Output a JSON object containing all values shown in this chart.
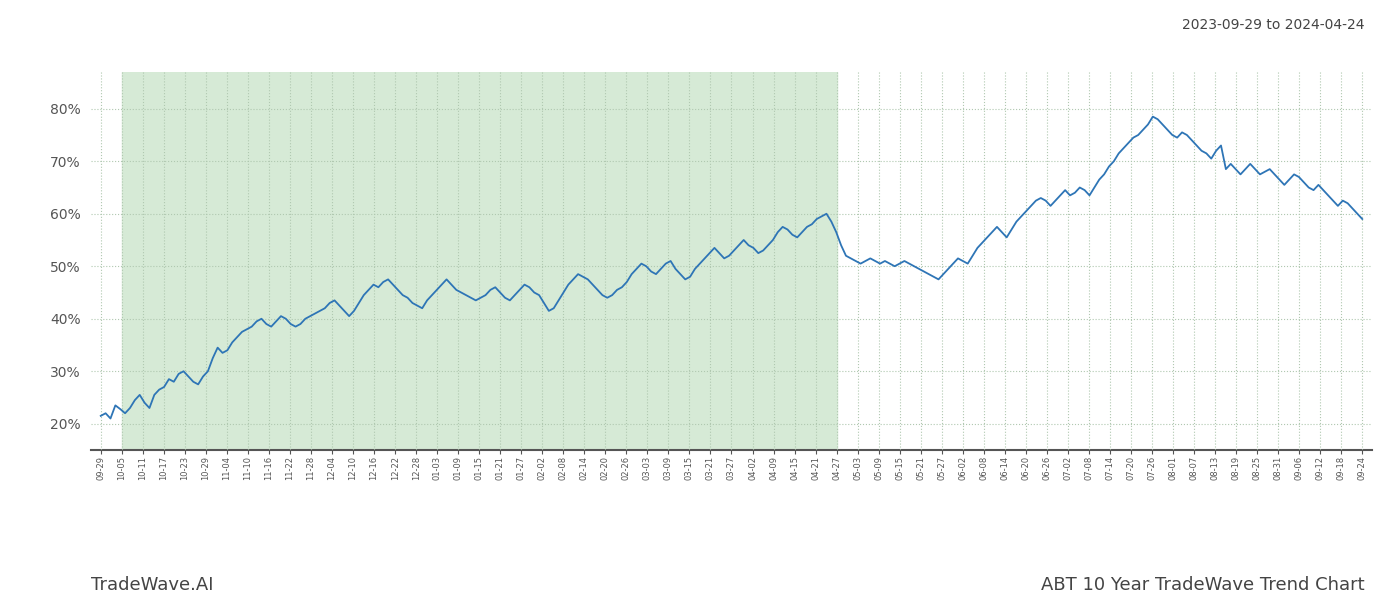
{
  "title": "ABT 10 Year TradeWave Trend Chart",
  "date_range": "2023-09-29 to 2024-04-24",
  "watermark_left": "TradeWave.AI",
  "line_color": "#2E75B6",
  "shaded_region_color": "#d6ead6",
  "background_color": "#ffffff",
  "grid_color": "#b0c8b0",
  "ylim": [
    15,
    87
  ],
  "yticks": [
    20,
    30,
    40,
    50,
    60,
    70,
    80
  ],
  "x_labels": [
    "09-29",
    "10-05",
    "10-11",
    "10-17",
    "10-23",
    "10-29",
    "11-04",
    "11-10",
    "11-16",
    "11-22",
    "11-28",
    "12-04",
    "12-10",
    "12-16",
    "12-22",
    "12-28",
    "01-03",
    "01-09",
    "01-15",
    "01-21",
    "01-27",
    "02-02",
    "02-08",
    "02-14",
    "02-20",
    "02-26",
    "03-03",
    "03-09",
    "03-15",
    "03-21",
    "03-27",
    "04-02",
    "04-09",
    "04-15",
    "04-21",
    "04-27",
    "05-03",
    "05-09",
    "05-15",
    "05-21",
    "05-27",
    "06-02",
    "06-08",
    "06-14",
    "06-20",
    "06-26",
    "07-02",
    "07-08",
    "07-14",
    "07-20",
    "07-26",
    "08-01",
    "08-07",
    "08-13",
    "08-19",
    "08-25",
    "08-31",
    "09-06",
    "09-12",
    "09-18",
    "09-24"
  ],
  "shaded_x_start_label": "10-05",
  "shaded_x_end_label": "04-27",
  "values": [
    21.5,
    22.0,
    21.0,
    23.5,
    22.8,
    22.0,
    23.0,
    24.5,
    25.5,
    24.0,
    23.0,
    25.5,
    26.5,
    27.0,
    28.5,
    28.0,
    29.5,
    30.0,
    29.0,
    28.0,
    27.5,
    29.0,
    30.0,
    32.5,
    34.5,
    33.5,
    34.0,
    35.5,
    36.5,
    37.5,
    38.0,
    38.5,
    39.5,
    40.0,
    39.0,
    38.5,
    39.5,
    40.5,
    40.0,
    39.0,
    38.5,
    39.0,
    40.0,
    40.5,
    41.0,
    41.5,
    42.0,
    43.0,
    43.5,
    42.5,
    41.5,
    40.5,
    41.5,
    43.0,
    44.5,
    45.5,
    46.5,
    46.0,
    47.0,
    47.5,
    46.5,
    45.5,
    44.5,
    44.0,
    43.0,
    42.5,
    42.0,
    43.5,
    44.5,
    45.5,
    46.5,
    47.5,
    46.5,
    45.5,
    45.0,
    44.5,
    44.0,
    43.5,
    44.0,
    44.5,
    45.5,
    46.0,
    45.0,
    44.0,
    43.5,
    44.5,
    45.5,
    46.5,
    46.0,
    45.0,
    44.5,
    43.0,
    41.5,
    42.0,
    43.5,
    45.0,
    46.5,
    47.5,
    48.5,
    48.0,
    47.5,
    46.5,
    45.5,
    44.5,
    44.0,
    44.5,
    45.5,
    46.0,
    47.0,
    48.5,
    49.5,
    50.5,
    50.0,
    49.0,
    48.5,
    49.5,
    50.5,
    51.0,
    49.5,
    48.5,
    47.5,
    48.0,
    49.5,
    50.5,
    51.5,
    52.5,
    53.5,
    52.5,
    51.5,
    52.0,
    53.0,
    54.0,
    55.0,
    54.0,
    53.5,
    52.5,
    53.0,
    54.0,
    55.0,
    56.5,
    57.5,
    57.0,
    56.0,
    55.5,
    56.5,
    57.5,
    58.0,
    59.0,
    59.5,
    60.0,
    58.5,
    56.5,
    54.0,
    52.0,
    51.5,
    51.0,
    50.5,
    51.0,
    51.5,
    51.0,
    50.5,
    51.0,
    50.5,
    50.0,
    50.5,
    51.0,
    50.5,
    50.0,
    49.5,
    49.0,
    48.5,
    48.0,
    47.5,
    48.5,
    49.5,
    50.5,
    51.5,
    51.0,
    50.5,
    52.0,
    53.5,
    54.5,
    55.5,
    56.5,
    57.5,
    56.5,
    55.5,
    57.0,
    58.5,
    59.5,
    60.5,
    61.5,
    62.5,
    63.0,
    62.5,
    61.5,
    62.5,
    63.5,
    64.5,
    63.5,
    64.0,
    65.0,
    64.5,
    63.5,
    65.0,
    66.5,
    67.5,
    69.0,
    70.0,
    71.5,
    72.5,
    73.5,
    74.5,
    75.0,
    76.0,
    77.0,
    78.5,
    78.0,
    77.0,
    76.0,
    75.0,
    74.5,
    75.5,
    75.0,
    74.0,
    73.0,
    72.0,
    71.5,
    70.5,
    72.0,
    73.0,
    68.5,
    69.5,
    68.5,
    67.5,
    68.5,
    69.5,
    68.5,
    67.5,
    68.0,
    68.5,
    67.5,
    66.5,
    65.5,
    66.5,
    67.5,
    67.0,
    66.0,
    65.0,
    64.5,
    65.5,
    64.5,
    63.5,
    62.5,
    61.5,
    62.5,
    62.0,
    61.0,
    60.0,
    59.0
  ]
}
